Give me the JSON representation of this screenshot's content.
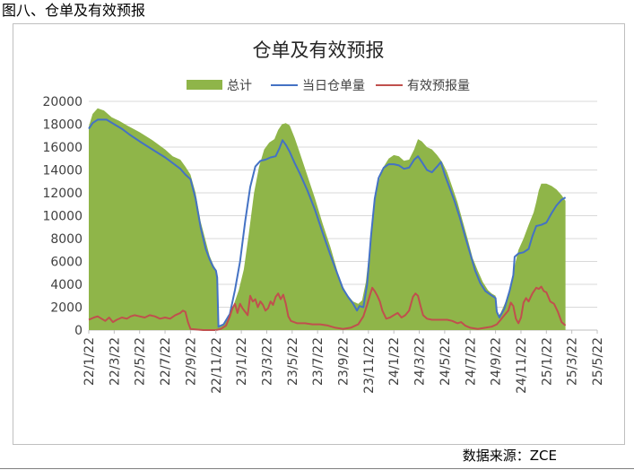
{
  "figure_caption": "图八、仓单及有效预报",
  "source": "数据来源：ZCE",
  "colors": {
    "total": "#8FB549",
    "warehouse": "#4472C4",
    "forecast": "#C0504D",
    "grid": "#d9d9d9"
  },
  "chart_data": {
    "type": "area",
    "title": "仓单及有效预报",
    "legend_position": "top",
    "grid": true,
    "ylim": [
      0,
      20000
    ],
    "y_ticks": [
      "0",
      "2000",
      "4000",
      "6000",
      "8000",
      "10000",
      "12000",
      "14000",
      "16000",
      "18000",
      "20000"
    ],
    "x_tick_labels": [
      "22/1/22",
      "22/3/22",
      "22/5/22",
      "22/7/22",
      "22/9/22",
      "22/11/22",
      "23/1/22",
      "23/3/22",
      "23/5/22",
      "23/7/22",
      "23/9/22",
      "23/11/22",
      "24/1/22",
      "24/3/22",
      "24/5/22",
      "24/7/22",
      "24/9/22",
      "24/11/22",
      "25/1/22",
      "25/3/22",
      "25/5/22"
    ],
    "series": [
      {
        "name": "总计",
        "kind": "area",
        "color": "#8FB549",
        "values": [
          [
            0,
            17800
          ],
          [
            0.15,
            18900
          ],
          [
            0.35,
            19400
          ],
          [
            0.6,
            19200
          ],
          [
            0.9,
            18600
          ],
          [
            1.2,
            18300
          ],
          [
            1.5,
            17900
          ],
          [
            2.0,
            17300
          ],
          [
            2.5,
            16600
          ],
          [
            3.0,
            15800
          ],
          [
            3.3,
            15200
          ],
          [
            3.6,
            14900
          ],
          [
            3.8,
            14300
          ],
          [
            4.0,
            13600
          ],
          [
            4.2,
            12000
          ],
          [
            4.4,
            9500
          ],
          [
            4.6,
            7800
          ],
          [
            4.75,
            6500
          ],
          [
            4.9,
            5700
          ],
          [
            5.0,
            5300
          ],
          [
            5.05,
            4700
          ],
          [
            5.1,
            500
          ],
          [
            5.2,
            300
          ],
          [
            5.45,
            900
          ],
          [
            5.7,
            2200
          ],
          [
            5.9,
            3500
          ],
          [
            6.1,
            5300
          ],
          [
            6.3,
            8500
          ],
          [
            6.5,
            12000
          ],
          [
            6.7,
            14300
          ],
          [
            6.9,
            15800
          ],
          [
            7.1,
            16400
          ],
          [
            7.3,
            16700
          ],
          [
            7.45,
            17500
          ],
          [
            7.6,
            18000
          ],
          [
            7.75,
            18100
          ],
          [
            7.9,
            17900
          ],
          [
            8.1,
            16800
          ],
          [
            8.3,
            15500
          ],
          [
            8.6,
            13500
          ],
          [
            8.9,
            11500
          ],
          [
            9.2,
            9300
          ],
          [
            9.5,
            7300
          ],
          [
            9.8,
            5000
          ],
          [
            10.0,
            3800
          ],
          [
            10.2,
            3000
          ],
          [
            10.4,
            2500
          ],
          [
            10.6,
            2300
          ],
          [
            10.75,
            2600
          ],
          [
            10.9,
            4200
          ],
          [
            11.05,
            7200
          ],
          [
            11.2,
            10600
          ],
          [
            11.4,
            13000
          ],
          [
            11.6,
            14300
          ],
          [
            11.8,
            15000
          ],
          [
            12.0,
            15300
          ],
          [
            12.2,
            15200
          ],
          [
            12.4,
            14800
          ],
          [
            12.6,
            14900
          ],
          [
            12.8,
            15800
          ],
          [
            12.95,
            16700
          ],
          [
            13.1,
            16500
          ],
          [
            13.3,
            16000
          ],
          [
            13.5,
            15800
          ],
          [
            13.7,
            15300
          ],
          [
            13.9,
            14700
          ],
          [
            14.1,
            13800
          ],
          [
            14.3,
            12500
          ],
          [
            14.5,
            11200
          ],
          [
            14.7,
            9600
          ],
          [
            14.9,
            8000
          ],
          [
            15.1,
            6300
          ],
          [
            15.3,
            5200
          ],
          [
            15.5,
            4200
          ],
          [
            15.7,
            3500
          ],
          [
            15.85,
            3200
          ],
          [
            16.0,
            3000
          ],
          [
            16.1,
            1200
          ],
          [
            16.2,
            1500
          ],
          [
            16.4,
            2500
          ],
          [
            16.6,
            4000
          ],
          [
            16.75,
            5600
          ],
          [
            16.9,
            7000
          ],
          [
            17.1,
            8000
          ],
          [
            17.3,
            9200
          ],
          [
            17.5,
            10300
          ],
          [
            17.6,
            11200
          ],
          [
            17.7,
            12200
          ],
          [
            17.8,
            12800
          ],
          [
            18.0,
            12800
          ],
          [
            18.2,
            12600
          ],
          [
            18.4,
            12300
          ],
          [
            18.6,
            11800
          ],
          [
            18.75,
            11300
          ]
        ]
      },
      {
        "name": "当日仓单量",
        "kind": "line",
        "color": "#4472C4",
        "values": [
          [
            0,
            17600
          ],
          [
            0.15,
            18100
          ],
          [
            0.35,
            18400
          ],
          [
            0.7,
            18400
          ],
          [
            1.0,
            18000
          ],
          [
            1.3,
            17600
          ],
          [
            1.6,
            17100
          ],
          [
            2.0,
            16500
          ],
          [
            2.5,
            15800
          ],
          [
            3.0,
            15100
          ],
          [
            3.3,
            14600
          ],
          [
            3.6,
            14100
          ],
          [
            3.8,
            13600
          ],
          [
            4.0,
            13200
          ],
          [
            4.2,
            11500
          ],
          [
            4.4,
            9000
          ],
          [
            4.6,
            7100
          ],
          [
            4.75,
            6200
          ],
          [
            4.9,
            5500
          ],
          [
            5.0,
            5200
          ],
          [
            5.05,
            4600
          ],
          [
            5.1,
            300
          ],
          [
            5.3,
            500
          ],
          [
            5.55,
            1400
          ],
          [
            5.75,
            3500
          ],
          [
            5.95,
            6000
          ],
          [
            6.15,
            9500
          ],
          [
            6.35,
            12500
          ],
          [
            6.55,
            14300
          ],
          [
            6.75,
            14800
          ],
          [
            6.95,
            14900
          ],
          [
            7.15,
            15100
          ],
          [
            7.35,
            15200
          ],
          [
            7.5,
            15900
          ],
          [
            7.62,
            16600
          ],
          [
            7.75,
            16200
          ],
          [
            7.9,
            15600
          ],
          [
            8.1,
            14600
          ],
          [
            8.3,
            13700
          ],
          [
            8.6,
            12200
          ],
          [
            8.9,
            10500
          ],
          [
            9.2,
            8500
          ],
          [
            9.5,
            6600
          ],
          [
            9.8,
            4800
          ],
          [
            10.0,
            3600
          ],
          [
            10.2,
            2900
          ],
          [
            10.4,
            2300
          ],
          [
            10.55,
            1700
          ],
          [
            10.65,
            2100
          ],
          [
            10.8,
            2000
          ],
          [
            10.95,
            4000
          ],
          [
            11.1,
            8200
          ],
          [
            11.25,
            11500
          ],
          [
            11.4,
            13300
          ],
          [
            11.6,
            14200
          ],
          [
            11.8,
            14500
          ],
          [
            12.0,
            14500
          ],
          [
            12.2,
            14400
          ],
          [
            12.4,
            14100
          ],
          [
            12.6,
            14200
          ],
          [
            12.8,
            14900
          ],
          [
            12.95,
            15200
          ],
          [
            13.1,
            14700
          ],
          [
            13.3,
            14000
          ],
          [
            13.5,
            13800
          ],
          [
            13.7,
            14300
          ],
          [
            13.85,
            14700
          ],
          [
            14.0,
            13600
          ],
          [
            14.2,
            12400
          ],
          [
            14.4,
            11200
          ],
          [
            14.6,
            9800
          ],
          [
            14.8,
            8200
          ],
          [
            15.0,
            6700
          ],
          [
            15.2,
            5200
          ],
          [
            15.4,
            4100
          ],
          [
            15.6,
            3400
          ],
          [
            15.8,
            3100
          ],
          [
            16.0,
            2800
          ],
          [
            16.05,
            1600
          ],
          [
            16.15,
            1100
          ],
          [
            16.35,
            1900
          ],
          [
            16.55,
            3400
          ],
          [
            16.7,
            4800
          ],
          [
            16.75,
            6400
          ],
          [
            16.9,
            6700
          ],
          [
            17.1,
            6800
          ],
          [
            17.3,
            7100
          ],
          [
            17.45,
            8200
          ],
          [
            17.6,
            9100
          ],
          [
            17.8,
            9200
          ],
          [
            18.0,
            9400
          ],
          [
            18.2,
            10200
          ],
          [
            18.4,
            10900
          ],
          [
            18.6,
            11400
          ],
          [
            18.75,
            11600
          ]
        ]
      },
      {
        "name": "有效预报量",
        "kind": "line",
        "color": "#C0504D",
        "values": [
          [
            0,
            900
          ],
          [
            0.2,
            1100
          ],
          [
            0.35,
            1200
          ],
          [
            0.5,
            1000
          ],
          [
            0.65,
            800
          ],
          [
            0.8,
            1100
          ],
          [
            0.95,
            700
          ],
          [
            1.1,
            900
          ],
          [
            1.3,
            1100
          ],
          [
            1.5,
            1000
          ],
          [
            1.65,
            1200
          ],
          [
            1.8,
            1300
          ],
          [
            2.0,
            1200
          ],
          [
            2.2,
            1100
          ],
          [
            2.4,
            1300
          ],
          [
            2.6,
            1200
          ],
          [
            2.8,
            1000
          ],
          [
            3.0,
            1100
          ],
          [
            3.2,
            1000
          ],
          [
            3.4,
            1300
          ],
          [
            3.6,
            1500
          ],
          [
            3.7,
            1700
          ],
          [
            3.8,
            1600
          ],
          [
            3.9,
            700
          ],
          [
            4.0,
            100
          ],
          [
            4.5,
            0
          ],
          [
            5.0,
            0
          ],
          [
            5.2,
            100
          ],
          [
            5.4,
            400
          ],
          [
            5.55,
            1200
          ],
          [
            5.65,
            1900
          ],
          [
            5.75,
            2300
          ],
          [
            5.85,
            1500
          ],
          [
            5.95,
            2300
          ],
          [
            6.05,
            1900
          ],
          [
            6.15,
            1600
          ],
          [
            6.25,
            1300
          ],
          [
            6.35,
            3000
          ],
          [
            6.45,
            2500
          ],
          [
            6.55,
            2700
          ],
          [
            6.65,
            2000
          ],
          [
            6.75,
            2500
          ],
          [
            6.85,
            2200
          ],
          [
            6.95,
            1700
          ],
          [
            7.05,
            1900
          ],
          [
            7.15,
            2500
          ],
          [
            7.25,
            2200
          ],
          [
            7.35,
            2900
          ],
          [
            7.45,
            3200
          ],
          [
            7.55,
            2700
          ],
          [
            7.65,
            3100
          ],
          [
            7.75,
            2300
          ],
          [
            7.85,
            1200
          ],
          [
            7.95,
            800
          ],
          [
            8.2,
            600
          ],
          [
            8.5,
            600
          ],
          [
            8.8,
            500
          ],
          [
            9.1,
            500
          ],
          [
            9.4,
            400
          ],
          [
            9.7,
            200
          ],
          [
            10.0,
            100
          ],
          [
            10.3,
            200
          ],
          [
            10.6,
            500
          ],
          [
            10.8,
            1200
          ],
          [
            10.95,
            2200
          ],
          [
            11.05,
            3000
          ],
          [
            11.15,
            3700
          ],
          [
            11.25,
            3400
          ],
          [
            11.35,
            3000
          ],
          [
            11.45,
            2500
          ],
          [
            11.55,
            1700
          ],
          [
            11.7,
            1000
          ],
          [
            11.85,
            1100
          ],
          [
            12.0,
            1300
          ],
          [
            12.15,
            1500
          ],
          [
            12.3,
            1100
          ],
          [
            12.45,
            1300
          ],
          [
            12.6,
            1700
          ],
          [
            12.75,
            2900
          ],
          [
            12.85,
            3200
          ],
          [
            12.95,
            3000
          ],
          [
            13.05,
            2100
          ],
          [
            13.15,
            1300
          ],
          [
            13.3,
            1000
          ],
          [
            13.5,
            900
          ],
          [
            13.7,
            900
          ],
          [
            13.9,
            900
          ],
          [
            14.1,
            900
          ],
          [
            14.3,
            800
          ],
          [
            14.5,
            600
          ],
          [
            14.65,
            700
          ],
          [
            14.8,
            400
          ],
          [
            15.0,
            200
          ],
          [
            15.3,
            100
          ],
          [
            15.6,
            200
          ],
          [
            15.85,
            300
          ],
          [
            16.05,
            500
          ],
          [
            16.2,
            900
          ],
          [
            16.35,
            1300
          ],
          [
            16.5,
            1700
          ],
          [
            16.6,
            2400
          ],
          [
            16.7,
            2100
          ],
          [
            16.8,
            1000
          ],
          [
            16.9,
            600
          ],
          [
            17.0,
            1100
          ],
          [
            17.1,
            2400
          ],
          [
            17.2,
            2800
          ],
          [
            17.3,
            2500
          ],
          [
            17.45,
            3200
          ],
          [
            17.6,
            3700
          ],
          [
            17.7,
            3600
          ],
          [
            17.8,
            3800
          ],
          [
            17.9,
            3400
          ],
          [
            18.0,
            3300
          ],
          [
            18.15,
            2500
          ],
          [
            18.3,
            2300
          ],
          [
            18.45,
            1600
          ],
          [
            18.6,
            700
          ],
          [
            18.75,
            400
          ]
        ]
      }
    ]
  }
}
